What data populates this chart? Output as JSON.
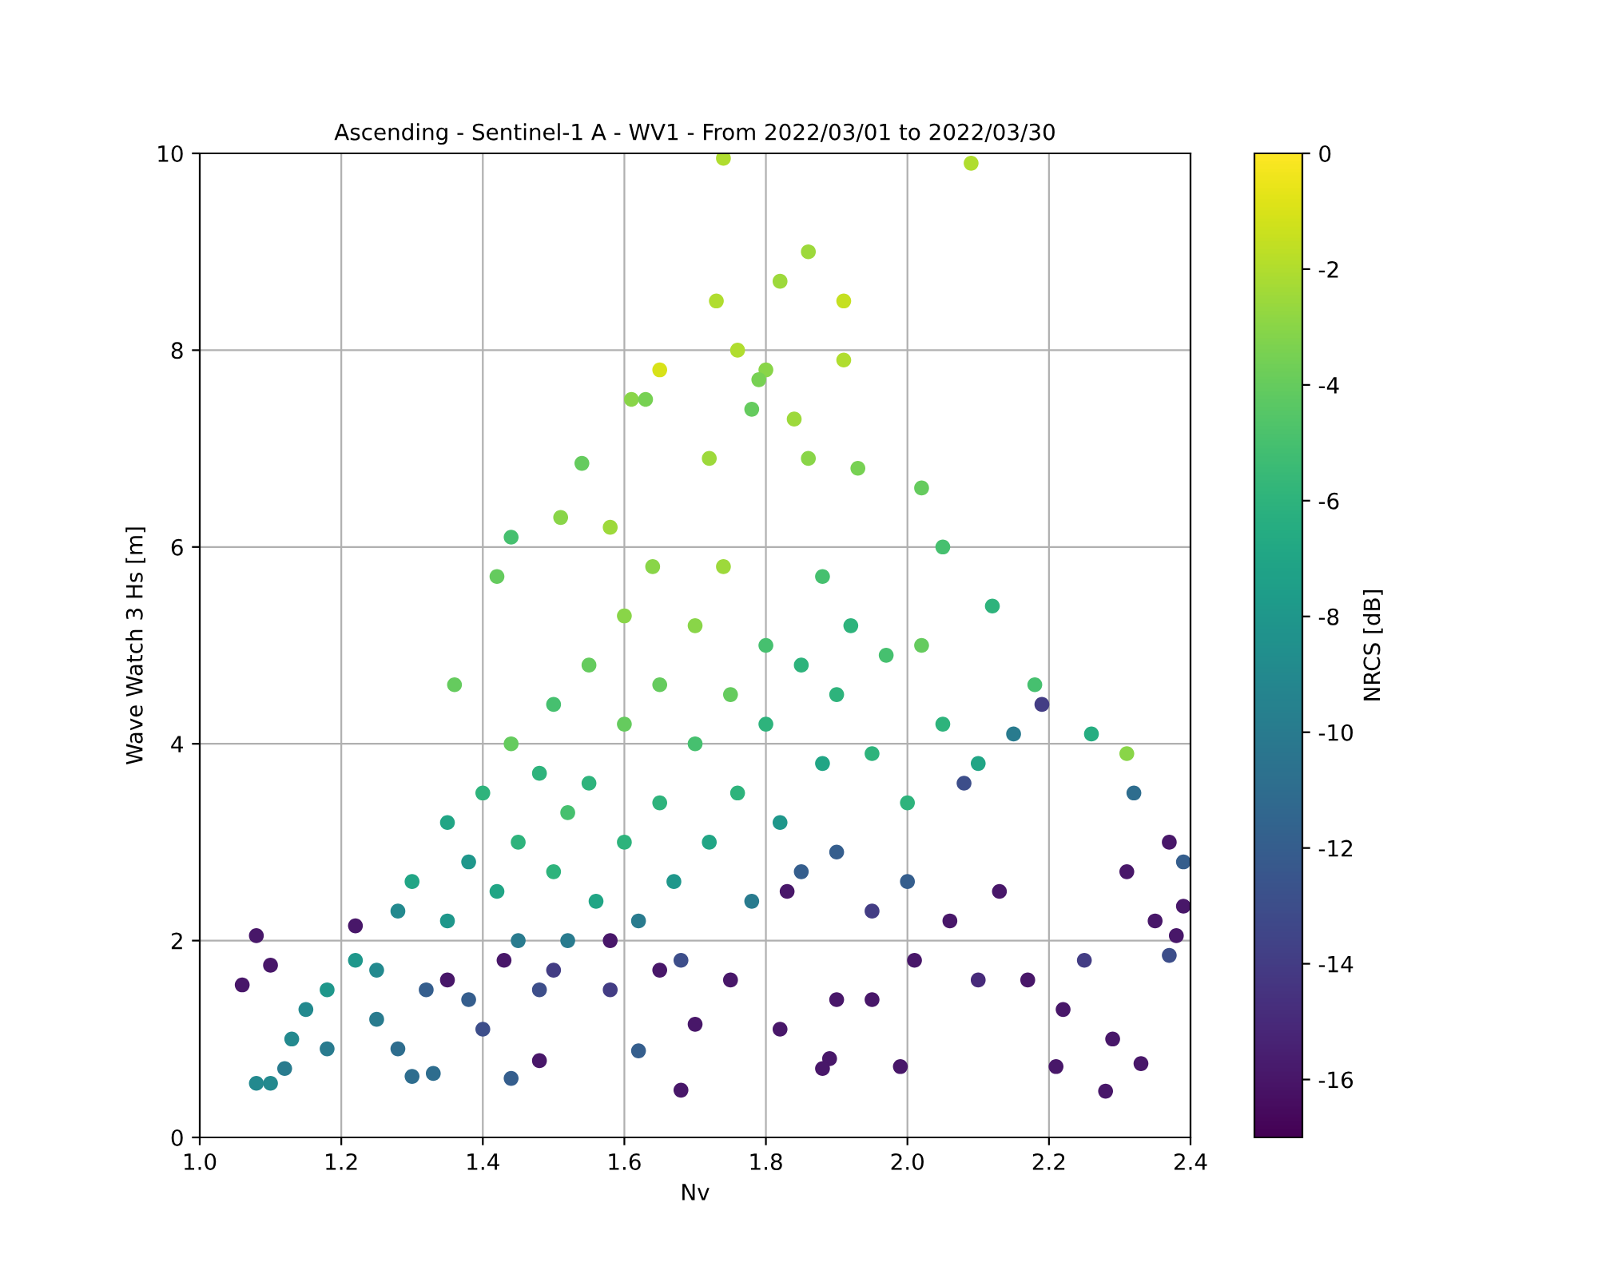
{
  "chart_data": {
    "type": "scatter",
    "title": "Ascending - Sentinel-1 A - WV1 - From 2022/03/01 to 2022/03/30",
    "xlabel": "Nv",
    "ylabel": "Wave Watch 3 Hs [m]",
    "clabel": "NRCS [dB]",
    "xlim": [
      1.0,
      2.4
    ],
    "xticks": [
      {
        "value": 1,
        "label": "1.0"
      },
      1.2,
      1.4,
      1.6,
      1.8,
      {
        "value": 2,
        "label": "2.0"
      },
      2.2,
      2.4
    ],
    "ylim": [
      0,
      10
    ],
    "yticks": [
      0,
      2,
      4,
      6,
      8,
      10
    ],
    "clim": [
      -17,
      0
    ],
    "cticks": [
      0,
      -2,
      -4,
      -6,
      -8,
      -10,
      -12,
      -14,
      -16
    ],
    "grid": true,
    "marker": "circle",
    "x": [
      1.74,
      2.09,
      1.86,
      1.91,
      1.82,
      1.73,
      1.91,
      1.76,
      1.65,
      1.8,
      1.61,
      1.63,
      1.79,
      1.78,
      1.84,
      1.54,
      1.72,
      1.93,
      1.86,
      1.44,
      1.51,
      1.58,
      2.02,
      2.05,
      1.36,
      1.42,
      2.12,
      2.18,
      2.26,
      2.31,
      2.32,
      2.39,
      2.37,
      2.38,
      2.39,
      2.37,
      2.35,
      2.29,
      2.31,
      2.33,
      2.28,
      2.21,
      2.22,
      2.25,
      2.17,
      2.1,
      2.13,
      2.19,
      2.08,
      2.06,
      2.01,
      1.99,
      1.95,
      1.89,
      1.88,
      1.82,
      1.68,
      1.62,
      1.44,
      1.48,
      1.7,
      1.9,
      2.0,
      1.95,
      1.9,
      1.83,
      1.1,
      1.08,
      1.12,
      1.06,
      1.08,
      1.1,
      1.15,
      1.13,
      1.18,
      1.18,
      1.22,
      1.22,
      1.25,
      1.25,
      1.28,
      1.3,
      1.33,
      1.28,
      1.3,
      1.32,
      1.35,
      1.35,
      1.38,
      1.38,
      1.4,
      1.4,
      1.42,
      1.44,
      1.45,
      1.45,
      1.48,
      1.48,
      1.5,
      1.5,
      1.52,
      1.52,
      1.55,
      1.55,
      1.56,
      1.58,
      1.6,
      1.6,
      1.6,
      1.62,
      1.64,
      1.65,
      1.65,
      1.67,
      1.68,
      1.7,
      1.7,
      1.72,
      1.74,
      1.75,
      1.76,
      1.78,
      1.8,
      1.8,
      1.82,
      1.85,
      1.85,
      1.88,
      1.88,
      1.9,
      1.92,
      1.95,
      1.97,
      2.0,
      2.02,
      2.05,
      2.1,
      2.15,
      1.58,
      1.75,
      1.65,
      1.5,
      1.35,
      1.43
    ],
    "values": [
      9.95,
      9.9,
      9.0,
      8.5,
      8.7,
      8.5,
      7.9,
      8.0,
      7.8,
      7.8,
      7.5,
      7.5,
      7.7,
      7.4,
      7.3,
      6.85,
      6.9,
      6.8,
      6.9,
      6.1,
      6.3,
      6.2,
      6.6,
      6.0,
      4.6,
      5.7,
      5.4,
      4.6,
      4.1,
      3.9,
      3.5,
      2.8,
      3.0,
      2.05,
      2.35,
      1.85,
      2.2,
      1.0,
      2.7,
      0.75,
      0.47,
      0.72,
      1.3,
      1.8,
      1.6,
      1.6,
      2.5,
      4.4,
      3.6,
      2.2,
      1.8,
      0.72,
      1.4,
      0.8,
      0.7,
      1.1,
      0.48,
      0.88,
      0.6,
      0.78,
      1.15,
      1.4,
      2.6,
      2.3,
      2.9,
      2.5,
      0.55,
      0.55,
      0.7,
      1.55,
      2.05,
      1.75,
      1.3,
      1.0,
      1.5,
      0.9,
      1.8,
      2.15,
      1.7,
      1.2,
      0.9,
      0.62,
      0.65,
      2.3,
      2.6,
      1.5,
      3.2,
      2.2,
      2.8,
      1.4,
      1.1,
      3.5,
      2.5,
      4.0,
      3.0,
      2.0,
      3.7,
      1.5,
      4.4,
      2.7,
      3.3,
      2.0,
      4.8,
      3.6,
      2.4,
      1.5,
      5.3,
      4.2,
      3.0,
      2.2,
      5.8,
      4.6,
      3.4,
      2.6,
      1.8,
      5.2,
      4.0,
      3.0,
      5.8,
      4.5,
      3.5,
      2.4,
      5.0,
      4.2,
      3.2,
      4.8,
      2.7,
      5.7,
      3.8,
      4.5,
      5.2,
      3.9,
      4.9,
      3.4,
      5.0,
      4.2,
      3.8,
      4.1,
      2.0,
      1.6,
      1.7,
      1.7,
      1.6,
      1.8
    ],
    "cvalues": [
      -2,
      -2,
      -2.5,
      -1.5,
      -2.5,
      -2,
      -2,
      -2,
      -1,
      -3,
      -3,
      -3.5,
      -3.5,
      -4,
      -2.5,
      -4,
      -2.5,
      -3.5,
      -3,
      -5,
      -3,
      -2.5,
      -4,
      -5,
      -4,
      -4,
      -6,
      -5,
      -6.5,
      -3,
      -11,
      -12,
      -16,
      -16,
      -16,
      -13,
      -16,
      -16,
      -16,
      -16,
      -16,
      -16,
      -16,
      -14,
      -16,
      -15,
      -16,
      -14,
      -13,
      -16,
      -16,
      -16,
      -16,
      -16,
      -16,
      -16,
      -16,
      -12,
      -12,
      -16,
      -16,
      -16,
      -12,
      -14,
      -12,
      -16,
      -9,
      -9,
      -10,
      -16,
      -16,
      -16,
      -9,
      -9,
      -8,
      -10,
      -8,
      -16,
      -9,
      -10,
      -11,
      -11,
      -11,
      -9,
      -7,
      -12,
      -7,
      -8,
      -8,
      -12,
      -13,
      -6,
      -7,
      -4,
      -6,
      -10,
      -6,
      -13,
      -5,
      -6,
      -5,
      -10,
      -4,
      -6,
      -7,
      -14,
      -3,
      -4,
      -6,
      -10,
      -3,
      -4,
      -6,
      -8,
      -13,
      -3,
      -5,
      -7,
      -2.5,
      -4,
      -6,
      -10,
      -5,
      -6,
      -8,
      -6,
      -12,
      -5,
      -7,
      -6,
      -6,
      -6,
      -5,
      -6,
      -4,
      -6,
      -7,
      -10,
      -16,
      -16,
      -16,
      -14,
      -16,
      -16
    ]
  }
}
